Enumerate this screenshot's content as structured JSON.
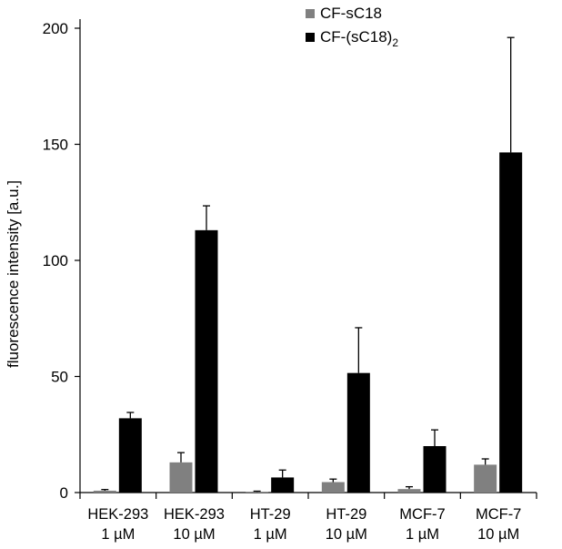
{
  "chart_data": {
    "type": "bar",
    "title": "",
    "xlabel": "",
    "ylabel": "fluorescence intensity [a.u.]",
    "ylim": [
      0,
      200
    ],
    "yticks": [
      0,
      50,
      100,
      150,
      200
    ],
    "grid": false,
    "legend_position": "top-center",
    "categories": [
      {
        "line1": "HEK-293",
        "line2": "1 µM"
      },
      {
        "line1": "HEK-293",
        "line2": "10 µM"
      },
      {
        "line1": "HT-29",
        "line2": "1 µM"
      },
      {
        "line1": "HT-29",
        "line2": "10 µM"
      },
      {
        "line1": "MCF-7",
        "line2": "1 µM"
      },
      {
        "line1": "MCF-7",
        "line2": "10 µM"
      }
    ],
    "series": [
      {
        "name": "CF-sC18",
        "legend_main": "CF-sC18",
        "legend_sub": "",
        "color": "#808080",
        "values": [
          0.8,
          13,
          0.3,
          4.5,
          1.5,
          12
        ],
        "errors": [
          0.5,
          4.2,
          0.3,
          1.3,
          1.0,
          2.5
        ]
      },
      {
        "name": "CF-(sC18)2",
        "legend_main": "CF-(sC18)",
        "legend_sub": "2",
        "color": "#000000",
        "values": [
          32,
          113,
          6.5,
          51.5,
          20,
          146.5
        ],
        "errors": [
          2.5,
          10.5,
          3.2,
          19.5,
          7.0,
          49.5
        ]
      }
    ]
  }
}
